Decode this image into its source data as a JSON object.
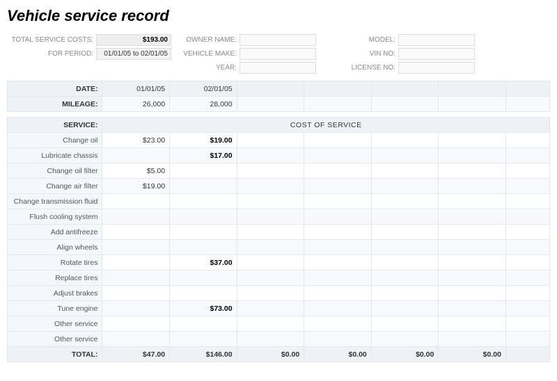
{
  "title": "Vehicle service record",
  "summary": {
    "total_label": "TOTAL SERVICE COSTS:",
    "total_value": "$193.00",
    "period_label": "FOR PERIOD:",
    "period_value": "01/01/05 to 02/01/05"
  },
  "owner_fields": {
    "owner_label": "OWNER NAME:",
    "make_label": "VEHICLE MAKE:",
    "year_label": "YEAR:",
    "model_label": "MODEL:",
    "vin_label": "VIN NO:",
    "license_label": "LICENSE NO:"
  },
  "date_row": {
    "label": "DATE:",
    "values": [
      "01/01/05",
      "02/01/05",
      "",
      "",
      "",
      ""
    ]
  },
  "mileage_row": {
    "label": "MILEAGE:",
    "values": [
      "26,000",
      "28,000",
      "",
      "",
      "",
      ""
    ]
  },
  "service_header": {
    "label": "SERVICE:",
    "cost_label": "COST OF SERVICE"
  },
  "services": [
    {
      "name": "Change oil",
      "c": [
        "$23.00",
        "$19.00",
        "",
        "",
        "",
        ""
      ],
      "bold2": true
    },
    {
      "name": "Lubricate chassis",
      "c": [
        "",
        "$17.00",
        "",
        "",
        "",
        ""
      ],
      "bold2": true
    },
    {
      "name": "Change oil filter",
      "c": [
        "$5.00",
        "",
        "",
        "",
        "",
        ""
      ]
    },
    {
      "name": "Change air filter",
      "c": [
        "$19.00",
        "",
        "",
        "",
        "",
        ""
      ]
    },
    {
      "name": "Change transmission fluid",
      "c": [
        "",
        "",
        "",
        "",
        "",
        ""
      ]
    },
    {
      "name": "Flush cooling system",
      "c": [
        "",
        "",
        "",
        "",
        "",
        ""
      ]
    },
    {
      "name": "Add antifreeze",
      "c": [
        "",
        "",
        "",
        "",
        "",
        ""
      ]
    },
    {
      "name": "Align wheels",
      "c": [
        "",
        "",
        "",
        "",
        "",
        ""
      ]
    },
    {
      "name": "Rotate tires",
      "c": [
        "",
        "$37.00",
        "",
        "",
        "",
        ""
      ],
      "bold2": true
    },
    {
      "name": "Replace tires",
      "c": [
        "",
        "",
        "",
        "",
        "",
        ""
      ]
    },
    {
      "name": "Adjust brakes",
      "c": [
        "",
        "",
        "",
        "",
        "",
        ""
      ]
    },
    {
      "name": "Tune engine",
      "c": [
        "",
        "$73.00",
        "",
        "",
        "",
        ""
      ],
      "bold2": true
    },
    {
      "name": "Other service",
      "c": [
        "",
        "",
        "",
        "",
        "",
        ""
      ]
    },
    {
      "name": "Other service",
      "c": [
        "",
        "",
        "",
        "",
        "",
        ""
      ]
    }
  ],
  "totals": {
    "label": "TOTAL:",
    "values": [
      "$47.00",
      "$146.00",
      "$0.00",
      "$0.00",
      "$0.00",
      "$0.00"
    ]
  },
  "colors": {
    "header_bg": "#eef2f7",
    "row_alt_bg": "#f7f9fc",
    "border": "#e4e8ec"
  }
}
